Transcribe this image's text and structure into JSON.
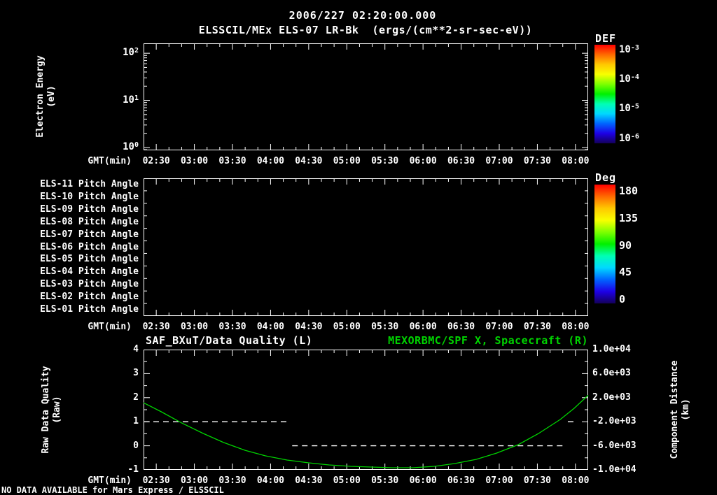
{
  "colors": {
    "background": "#000000",
    "foreground": "#ffffff",
    "green": "#00d400",
    "colorbar_stops": [
      "#ff0000",
      "#ff6a00",
      "#ffc800",
      "#f8ff00",
      "#7dff00",
      "#00f000",
      "#00ffb4",
      "#00d8ff",
      "#0064ff",
      "#1e00e6",
      "#14005a"
    ]
  },
  "header": {
    "timestamp": "2006/227 02:20:00.000",
    "instrument": "ELSSCIL/MEx ELS-07 LR-Bk",
    "units": "(ergs/(cm**2-sr-sec-eV))"
  },
  "time_axis": {
    "label": "GMT(min)",
    "start_minute": 140,
    "end_minute": 490,
    "major_tick_minutes": [
      150,
      180,
      210,
      240,
      270,
      300,
      330,
      360,
      390,
      420,
      450,
      480
    ],
    "major_tick_labels": [
      "02:30",
      "03:00",
      "03:30",
      "04:00",
      "04:30",
      "05:00",
      "05:30",
      "06:00",
      "06:30",
      "07:00",
      "07:30",
      "08:00"
    ],
    "minor_tick_step_minutes": 10
  },
  "energy_panel": {
    "y_axis_label_line1": "Electron Energy",
    "y_axis_label_line2": "(eV)",
    "y_tick_exponents": [
      2,
      1,
      0
    ],
    "colorbar": {
      "title": "DEF",
      "tick_exponents": [
        -3,
        -4,
        -5,
        -6
      ]
    }
  },
  "pitch_panel": {
    "row_labels": [
      "ELS-11 Pitch Angle",
      "ELS-10 Pitch Angle",
      "ELS-09 Pitch Angle",
      "ELS-08 Pitch Angle",
      "ELS-07 Pitch Angle",
      "ELS-06 Pitch Angle",
      "ELS-05 Pitch Angle",
      "ELS-04 Pitch Angle",
      "ELS-03 Pitch Angle",
      "ELS-02 Pitch Angle",
      "ELS-01 Pitch Angle"
    ],
    "colorbar": {
      "title": "Deg",
      "tick_labels": [
        "180",
        "135",
        "90",
        "45",
        "0"
      ]
    }
  },
  "quality_panel": {
    "title_left": "SAF_BXuT/Data Quality (L)",
    "title_right": "MEXORBMC/SPF X, Spacecraft (R)",
    "left_axis": {
      "label_line1": "Raw Data Quality",
      "label_line2": "(Raw)",
      "ticks": [
        4,
        3,
        2,
        1,
        0,
        -1
      ],
      "min": -1,
      "max": 4
    },
    "right_axis": {
      "label_line1": "Component Distance",
      "label_line2": "(km)",
      "tick_labels": [
        "1.0e+04",
        "6.0e+03",
        "2.0e+03",
        "-2.0e+03",
        "-6.0e+03",
        "-1.0e+04"
      ],
      "min": -10000,
      "max": 10000
    }
  },
  "footer": {
    "message": "NO DATA AVAILABLE for Mars Express / ELSSCIL"
  },
  "chart_data": [
    {
      "type": "heatmap",
      "title": "ELSSCIL/MEx ELS-07 LR-Bk",
      "xlabel": "GMT(min)",
      "ylabel": "Electron Energy (eV)",
      "x_tick_labels": [
        "02:30",
        "03:00",
        "03:30",
        "04:00",
        "04:30",
        "05:00",
        "05:30",
        "06:00",
        "06:30",
        "07:00",
        "07:30",
        "08:00"
      ],
      "y_scale": "log",
      "y_ticks_eV": [
        1,
        10,
        100
      ],
      "colorbar_title": "DEF",
      "colorbar_units": "ergs/(cm**2-sr-sec-eV)",
      "colorbar_ticks": [
        0.001,
        0.0001,
        1e-05,
        1e-06
      ],
      "values": [],
      "note": "no data available - panel empty"
    },
    {
      "type": "heatmap",
      "categories": [
        "ELS-11 Pitch Angle",
        "ELS-10 Pitch Angle",
        "ELS-09 Pitch Angle",
        "ELS-08 Pitch Angle",
        "ELS-07 Pitch Angle",
        "ELS-06 Pitch Angle",
        "ELS-05 Pitch Angle",
        "ELS-04 Pitch Angle",
        "ELS-03 Pitch Angle",
        "ELS-02 Pitch Angle",
        "ELS-01 Pitch Angle"
      ],
      "xlabel": "GMT(min)",
      "colorbar_title": "Deg",
      "colorbar_ticks": [
        180,
        135,
        90,
        45,
        0
      ],
      "values": [],
      "note": "no data available - panel empty"
    },
    {
      "type": "line",
      "xlabel": "GMT(min)",
      "x_unit": "minutes since 00:00 GMT",
      "x_range_minutes": [
        140,
        490
      ],
      "left_ylabel": "Raw Data Quality (Raw)",
      "left_ylim": [
        -1,
        4
      ],
      "right_ylabel": "Component Distance (km)",
      "right_ylim": [
        -10000,
        10000
      ],
      "series": [
        {
          "name": "SAF_BXuT/Data Quality (L)",
          "axis": "left",
          "style": "dashed",
          "color": "#ffffff",
          "segments": [
            {
              "start_min": 140,
              "end_min": 255,
              "value": 1
            },
            {
              "start_min": 257,
              "end_min": 471,
              "value": 0
            },
            {
              "start_min": 474,
              "end_min": 481,
              "value": 1
            }
          ]
        },
        {
          "name": "MEXORBMC/SPF X, Spacecraft (R)",
          "axis": "right",
          "style": "solid",
          "color": "#00d400",
          "points_min_km": [
            [
              140,
              1150
            ],
            [
              154,
              -350
            ],
            [
              170,
              -2200
            ],
            [
              187,
              -3950
            ],
            [
              203,
              -5450
            ],
            [
              220,
              -6750
            ],
            [
              236,
              -7670
            ],
            [
              253,
              -8370
            ],
            [
              270,
              -8840
            ],
            [
              286,
              -9190
            ],
            [
              303,
              -9420
            ],
            [
              319,
              -9540
            ],
            [
              336,
              -9650
            ],
            [
              352,
              -9650
            ],
            [
              369,
              -9420
            ],
            [
              385,
              -8950
            ],
            [
              402,
              -8260
            ],
            [
              418,
              -7210
            ],
            [
              435,
              -5810
            ],
            [
              451,
              -3950
            ],
            [
              468,
              -1630
            ],
            [
              479,
              230
            ],
            [
              490,
              2400
            ]
          ]
        }
      ]
    }
  ]
}
